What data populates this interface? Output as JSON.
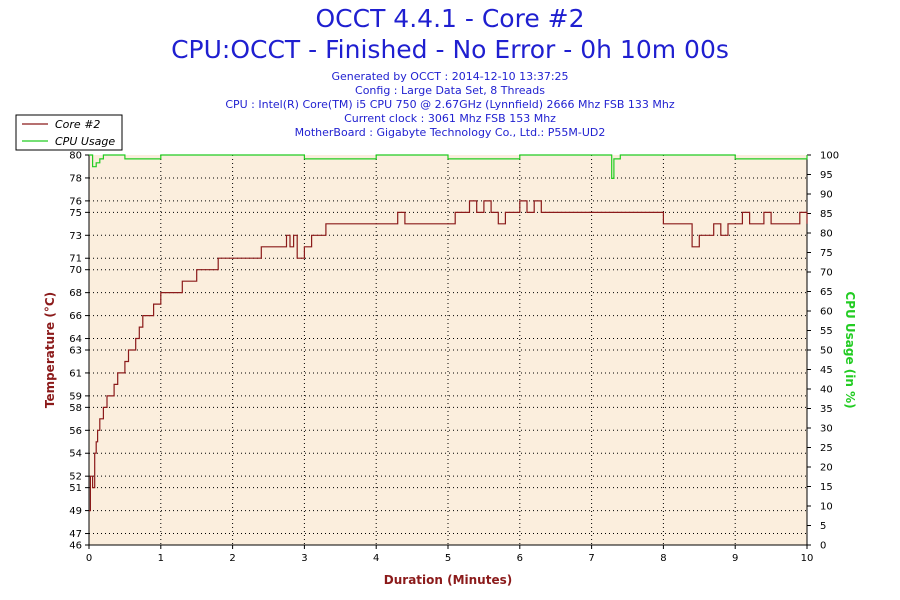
{
  "header": {
    "title": "OCCT 4.4.1 - Core #2",
    "subtitle": "CPU:OCCT - Finished - No Error - 0h 10m 00s",
    "info_lines": [
      "Generated by OCCT : 2014-12-10 13:37:25",
      "Config : Large Data Set, 8 Threads",
      "CPU : Intel(R) Core(TM) i5 CPU 750 @ 2.67GHz (Lynnfield) 2666 Mhz FSB 133 Mhz",
      "Current clock : 3061 Mhz FSB 153 Mhz",
      "MotherBoard : Gigabyte Technology Co., Ltd.: P55M-UD2"
    ]
  },
  "colors": {
    "title": "#1f1fd0",
    "temperature": "#8b1a1a",
    "cpu_usage": "#22cc22",
    "plot_background": "#fbeedd",
    "grid": "#000000"
  },
  "chart_data": {
    "type": "line",
    "xlabel": "Duration (Minutes)",
    "ylabel": "Temperature (°C)",
    "y2label": "CPU Usage (in %)",
    "xlim": [
      0,
      10
    ],
    "ylim": [
      46,
      80
    ],
    "y2lim": [
      0,
      100
    ],
    "x_ticks": [
      0,
      1,
      2,
      3,
      4,
      5,
      6,
      7,
      8,
      9,
      10
    ],
    "y_ticks": [
      46,
      47,
      49,
      51,
      52,
      54,
      56,
      58,
      59,
      61,
      63,
      64,
      66,
      68,
      70,
      71,
      73,
      75,
      76,
      78,
      80
    ],
    "y2_ticks": [
      0,
      5,
      10,
      15,
      20,
      25,
      30,
      35,
      40,
      45,
      50,
      55,
      60,
      65,
      70,
      75,
      80,
      85,
      90,
      95,
      100
    ],
    "grid": "dotted",
    "legend_position": "top-left",
    "legend": [
      "Core #2",
      "CPU Usage"
    ],
    "series": [
      {
        "name": "Core #2",
        "axis": "left",
        "x": [
          0,
          0.02,
          0.05,
          0.08,
          0.1,
          0.12,
          0.15,
          0.2,
          0.25,
          0.3,
          0.35,
          0.4,
          0.45,
          0.5,
          0.55,
          0.6,
          0.65,
          0.7,
          0.75,
          0.8,
          0.85,
          0.9,
          0.95,
          1.0,
          1.1,
          1.2,
          1.3,
          1.4,
          1.5,
          1.6,
          1.7,
          1.8,
          1.9,
          2.0,
          2.1,
          2.2,
          2.3,
          2.4,
          2.5,
          2.6,
          2.7,
          2.75,
          2.8,
          2.85,
          2.9,
          3.0,
          3.1,
          3.2,
          3.3,
          3.4,
          3.5,
          3.6,
          3.7,
          3.8,
          3.9,
          4.0,
          4.1,
          4.2,
          4.3,
          4.4,
          4.5,
          4.6,
          4.7,
          4.8,
          4.9,
          5.0,
          5.1,
          5.2,
          5.3,
          5.4,
          5.5,
          5.6,
          5.7,
          5.8,
          5.9,
          6.0,
          6.1,
          6.2,
          6.3,
          6.4,
          6.5,
          6.6,
          6.7,
          6.8,
          6.9,
          7.0,
          7.1,
          7.2,
          7.3,
          7.4,
          7.5,
          7.6,
          7.7,
          7.8,
          7.9,
          8.0,
          8.1,
          8.2,
          8.3,
          8.4,
          8.5,
          8.6,
          8.7,
          8.8,
          8.9,
          9.0,
          9.1,
          9.2,
          9.3,
          9.4,
          9.5,
          9.6,
          9.7,
          9.8,
          9.9,
          10.0
        ],
        "values": [
          49,
          52,
          51,
          54,
          55,
          56,
          57,
          58,
          59,
          59,
          60,
          61,
          61,
          62,
          63,
          63,
          64,
          65,
          66,
          66,
          66,
          67,
          67,
          68,
          68,
          68,
          69,
          69,
          70,
          70,
          70,
          71,
          71,
          71,
          71,
          71,
          71,
          72,
          72,
          72,
          72,
          73,
          72,
          73,
          71,
          72,
          73,
          73,
          74,
          74,
          74,
          74,
          74,
          74,
          74,
          74,
          74,
          74,
          75,
          74,
          74,
          74,
          74,
          74,
          74,
          74,
          75,
          75,
          76,
          75,
          76,
          75,
          74,
          75,
          75,
          76,
          75,
          76,
          75,
          75,
          75,
          75,
          75,
          75,
          75,
          75,
          75,
          75,
          75,
          75,
          75,
          75,
          75,
          75,
          75,
          74,
          74,
          74,
          74,
          72,
          73,
          73,
          74,
          73,
          74,
          74,
          75,
          74,
          74,
          75,
          74,
          74,
          74,
          74,
          75,
          74
        ]
      },
      {
        "name": "CPU Usage",
        "axis": "right",
        "x": [
          0,
          0.05,
          0.1,
          0.15,
          0.2,
          0.3,
          0.5,
          1,
          2,
          3,
          4,
          5,
          6,
          7,
          7.25,
          7.28,
          7.31,
          7.4,
          8,
          9,
          10
        ],
        "values": [
          100,
          97,
          98,
          99,
          100,
          100,
          99,
          100,
          100,
          99,
          100,
          99,
          100,
          100,
          100,
          94,
          99,
          100,
          100,
          99,
          100
        ]
      }
    ]
  }
}
